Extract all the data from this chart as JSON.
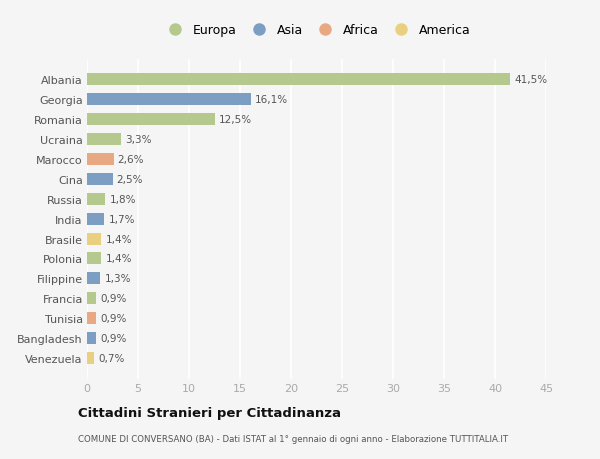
{
  "countries": [
    "Albania",
    "Georgia",
    "Romania",
    "Ucraina",
    "Marocco",
    "Cina",
    "Russia",
    "India",
    "Brasile",
    "Polonia",
    "Filippine",
    "Francia",
    "Tunisia",
    "Bangladesh",
    "Venezuela"
  ],
  "values": [
    41.5,
    16.1,
    12.5,
    3.3,
    2.6,
    2.5,
    1.8,
    1.7,
    1.4,
    1.4,
    1.3,
    0.9,
    0.9,
    0.9,
    0.7
  ],
  "labels": [
    "41,5%",
    "16,1%",
    "12,5%",
    "3,3%",
    "2,6%",
    "2,5%",
    "1,8%",
    "1,7%",
    "1,4%",
    "1,4%",
    "1,3%",
    "0,9%",
    "0,9%",
    "0,9%",
    "0,7%"
  ],
  "continents": [
    "Europa",
    "Asia",
    "Europa",
    "Europa",
    "Africa",
    "Asia",
    "Europa",
    "Asia",
    "America",
    "Europa",
    "Asia",
    "Europa",
    "Africa",
    "Asia",
    "America"
  ],
  "colors": {
    "Europa": "#b5c98e",
    "Asia": "#7b9ec2",
    "Africa": "#e8a882",
    "America": "#e8d080"
  },
  "legend_order": [
    "Europa",
    "Asia",
    "Africa",
    "America"
  ],
  "title": "Cittadini Stranieri per Cittadinanza",
  "subtitle": "COMUNE DI CONVERSANO (BA) - Dati ISTAT al 1° gennaio di ogni anno - Elaborazione TUTTITALIA.IT",
  "xlim": [
    0,
    45
  ],
  "xticks": [
    0,
    5,
    10,
    15,
    20,
    25,
    30,
    35,
    40,
    45
  ],
  "background_color": "#f5f5f5",
  "grid_color": "#ffffff",
  "bar_height": 0.6
}
